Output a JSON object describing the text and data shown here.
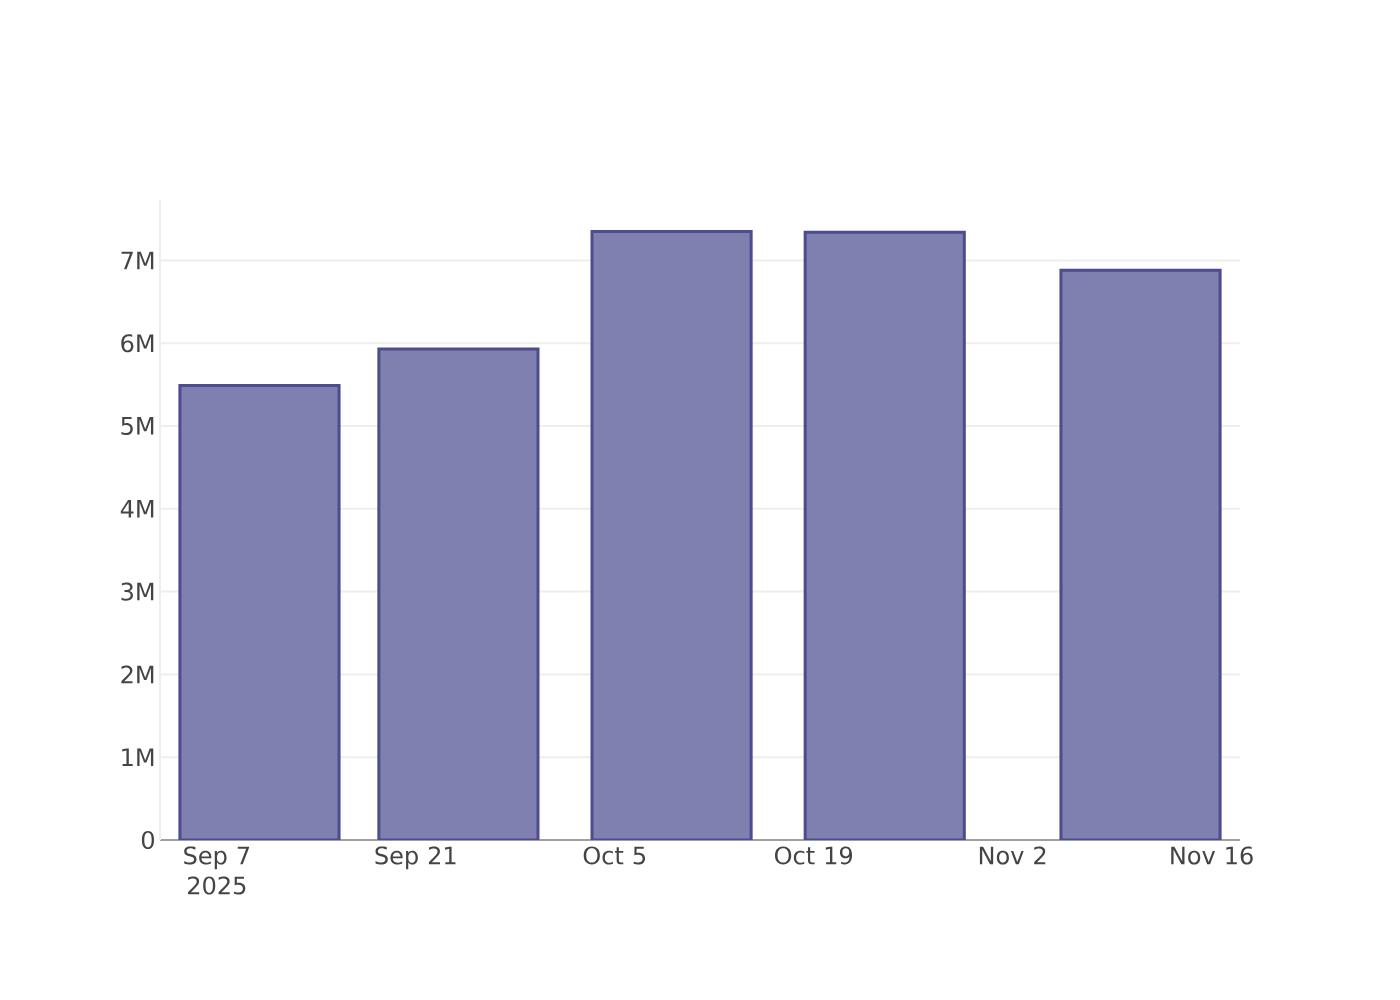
{
  "chart_data": {
    "type": "bar",
    "x": [
      "2025-09-10",
      "2025-09-24",
      "2025-10-09",
      "2025-10-24",
      "2025-11-11"
    ],
    "values": [
      5490000,
      5930000,
      7350000,
      7340000,
      6880000
    ],
    "color": "#7f7fb0",
    "xlim": [
      "2025-09-03",
      "2025-11-18"
    ],
    "xticks": [
      {
        "value": "2025-09-07",
        "label": "Sep 7 2025"
      },
      {
        "value": "2025-09-21",
        "label": "Sep 21"
      },
      {
        "value": "2025-10-05",
        "label": "Oct 5"
      },
      {
        "value": "2025-10-19",
        "label": "Oct 19"
      },
      {
        "value": "2025-11-02",
        "label": "Nov 2"
      },
      {
        "value": "2025-11-16",
        "label": "Nov 16"
      }
    ],
    "ylim": [
      0,
      7730000
    ],
    "yticks": [
      0,
      {
        "value": 1000000,
        "label": "1M"
      },
      {
        "value": 2000000,
        "label": "2M"
      },
      {
        "value": 3000000,
        "label": "3M"
      },
      {
        "value": 4000000,
        "label": "4M"
      },
      {
        "value": 5000000,
        "label": "5M"
      },
      {
        "value": 6000000,
        "label": "6M"
      },
      {
        "value": 7000000,
        "label": "7M"
      }
    ],
    "grid": "y"
  }
}
